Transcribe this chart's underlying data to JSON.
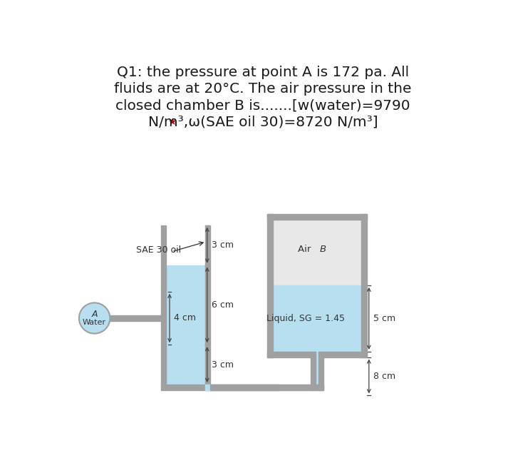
{
  "title_line1": "Q1: the pressure at point A is 172 pa. All",
  "title_line2": "fluids are at 20°C. The air pressure in the",
  "title_line3": "closed chamber B is.......[w(water)=9790",
  "title_line4_black": "N/m³,ω(SAE oil 30)=8720 N/m³]",
  "title_line4_star_color": "#cc0000",
  "bg_color": "#ffffff",
  "tube_fill_color": "#b8dff0",
  "tube_border_color": "#a0a0a0",
  "air_color": "#e8e8e8",
  "title_fontsize": 14.5,
  "annot_fontsize": 9,
  "label_fontsize": 9.5
}
